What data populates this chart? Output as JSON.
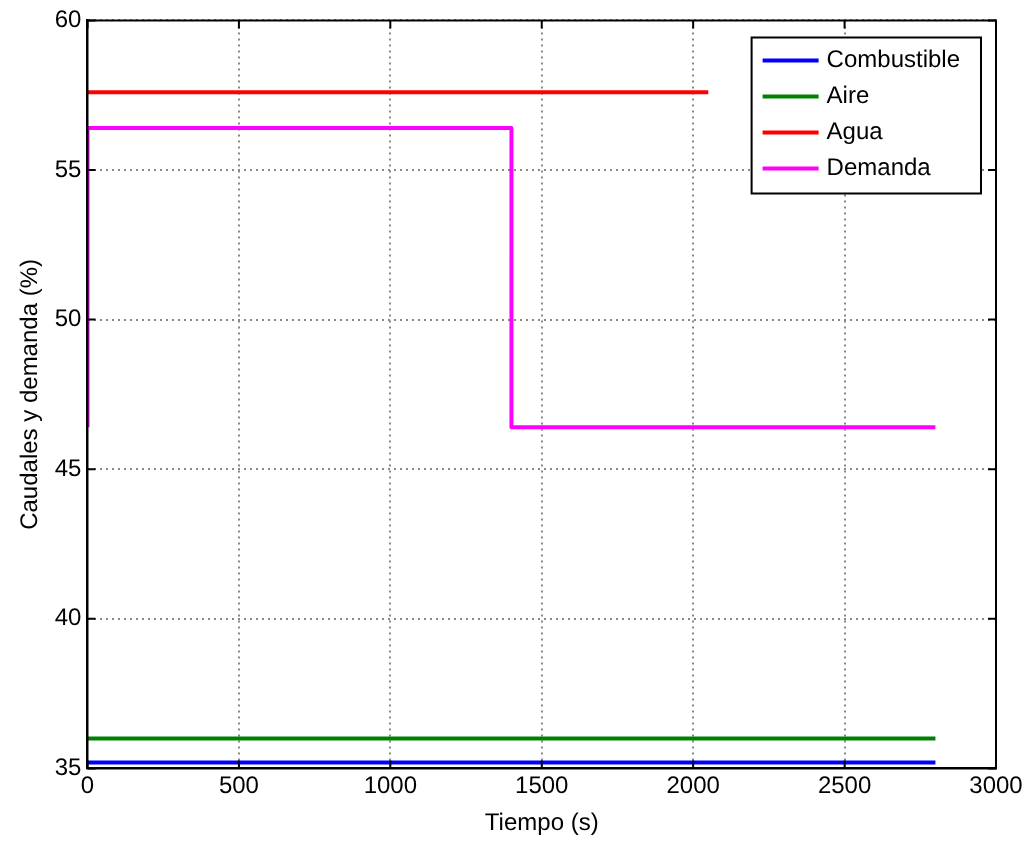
{
  "chart_data": {
    "type": "line",
    "xlabel": "Tiempo (s)",
    "ylabel": "Caudales y demanda (%)",
    "xlim": [
      0,
      3000
    ],
    "xticks": [
      0,
      500,
      1000,
      1500,
      2000,
      2500,
      3000
    ],
    "ylim": [
      35,
      60
    ],
    "yticks": [
      35,
      40,
      45,
      50,
      55,
      60
    ],
    "grid": true,
    "legend": "top right",
    "marker": "none",
    "line_style": "solid",
    "series": [
      {
        "name": "Combustible",
        "color": "#0000ff",
        "x": [
          0,
          2800
        ],
        "values": [
          35.2,
          35.2
        ]
      },
      {
        "name": "Aire",
        "color": "#008000",
        "x": [
          0,
          2800
        ],
        "values": [
          36.0,
          36.0
        ]
      },
      {
        "name": "Agua",
        "color": "#ff0000",
        "x": [
          0,
          2050
        ],
        "values": [
          57.6,
          57.6
        ]
      },
      {
        "name": "Demanda",
        "color": "#ff00ff",
        "x": [
          0,
          0,
          1400,
          1400,
          2800
        ],
        "values": [
          46.4,
          56.4,
          56.4,
          46.4,
          46.4
        ]
      }
    ]
  }
}
